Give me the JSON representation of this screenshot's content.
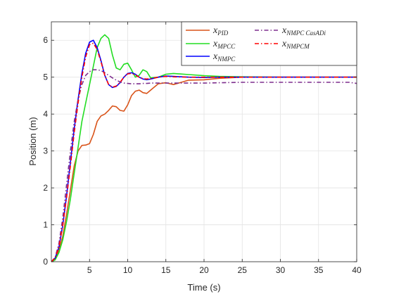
{
  "chart_data": {
    "type": "line",
    "title": "",
    "xlabel": "Time (s)",
    "ylabel": "Position (m)",
    "xlim": [
      0,
      40
    ],
    "ylim": [
      0,
      6.5
    ],
    "xticks": [
      "5",
      "10",
      "15",
      "20",
      "25",
      "30",
      "35",
      "40"
    ],
    "yticks": [
      "0",
      "1",
      "2",
      "3",
      "4",
      "5",
      "6"
    ],
    "grid": true,
    "legend_position": "top-right",
    "series": [
      {
        "name": "x_PID",
        "legend_main": "x",
        "legend_sub": "PID",
        "color": "#D95319",
        "dash": "solid",
        "x": [
          0,
          0.5,
          1,
          1.5,
          2,
          2.5,
          3,
          3.5,
          4,
          4.5,
          5,
          5.5,
          6,
          6.5,
          7,
          7.5,
          8,
          8.5,
          9,
          9.5,
          10,
          10.5,
          11,
          11.5,
          12,
          12.5,
          13,
          14,
          15,
          16,
          18,
          20,
          22,
          25,
          30,
          35,
          40
        ],
        "y": [
          0,
          0.08,
          0.3,
          0.7,
          1.3,
          1.95,
          2.6,
          3.0,
          3.15,
          3.16,
          3.2,
          3.45,
          3.8,
          3.95,
          4.0,
          4.1,
          4.22,
          4.2,
          4.1,
          4.08,
          4.25,
          4.5,
          4.62,
          4.65,
          4.58,
          4.56,
          4.65,
          4.82,
          4.85,
          4.8,
          4.92,
          4.93,
          4.97,
          5.0,
          5.0,
          5.0,
          5.0
        ]
      },
      {
        "name": "x_MPCC",
        "legend_main": "x",
        "legend_sub": "MPCC",
        "color": "#22DD22",
        "dash": "solid",
        "x": [
          0,
          0.5,
          1,
          1.5,
          2,
          2.5,
          3,
          3.5,
          4,
          4.5,
          5,
          5.5,
          6,
          6.5,
          7,
          7.5,
          8,
          8.5,
          9,
          9.5,
          10,
          10.5,
          11,
          11.5,
          12,
          12.5,
          13,
          14,
          15,
          16,
          18,
          20,
          22,
          25,
          30,
          35,
          40
        ],
        "y": [
          0,
          0.05,
          0.25,
          0.6,
          1.1,
          1.7,
          2.4,
          3.1,
          3.8,
          4.3,
          4.8,
          5.3,
          5.8,
          6.05,
          6.15,
          6.05,
          5.6,
          5.25,
          5.2,
          5.35,
          5.38,
          5.2,
          5.0,
          5.05,
          5.2,
          5.15,
          4.98,
          5.0,
          5.08,
          5.1,
          5.07,
          5.04,
          5.02,
          5.01,
          5.0,
          5.0,
          5.0
        ]
      },
      {
        "name": "x_NMPC",
        "legend_main": "x",
        "legend_sub": "NMPC",
        "color": "#0000FF",
        "dash": "solid",
        "x": [
          0,
          0.5,
          1,
          1.5,
          2,
          2.5,
          3,
          3.5,
          4,
          4.5,
          5,
          5.5,
          6,
          6.5,
          7,
          7.5,
          8,
          8.5,
          9,
          9.5,
          10,
          10.5,
          11,
          11.5,
          12,
          12.5,
          13,
          14,
          15,
          16,
          18,
          20,
          22,
          25,
          30,
          35,
          40
        ],
        "y": [
          0,
          0.1,
          0.4,
          1.0,
          1.8,
          2.7,
          3.6,
          4.4,
          5.1,
          5.65,
          5.95,
          6.0,
          5.8,
          5.45,
          5.05,
          4.8,
          4.72,
          4.75,
          4.85,
          5.0,
          5.1,
          5.12,
          5.08,
          5.0,
          4.95,
          4.93,
          4.95,
          5.0,
          5.03,
          5.02,
          5.0,
          4.99,
          5.0,
          5.0,
          5.0,
          5.0,
          5.0
        ]
      },
      {
        "name": "x_NMPC CasADi",
        "legend_main": "x",
        "legend_sub": "NMPC CasADi",
        "color": "#7E2F8E",
        "dash": "dashdot",
        "x": [
          0,
          0.5,
          1,
          1.5,
          2,
          2.5,
          3,
          3.5,
          4,
          4.5,
          5,
          5.5,
          6,
          6.5,
          7,
          7.5,
          8,
          8.5,
          9,
          9.5,
          10,
          10.5,
          11,
          11.5,
          12,
          12.5,
          13,
          14,
          15,
          16,
          18,
          20,
          22,
          25,
          30,
          35,
          39,
          40
        ],
        "y": [
          0,
          0.12,
          0.5,
          1.2,
          2.1,
          3.0,
          3.8,
          4.4,
          4.8,
          5.05,
          5.15,
          5.2,
          5.2,
          5.18,
          5.12,
          5.05,
          4.98,
          4.92,
          4.87,
          4.84,
          4.83,
          4.82,
          4.82,
          4.82,
          4.83,
          4.83,
          4.84,
          4.84,
          4.84,
          4.84,
          4.84,
          4.84,
          4.85,
          4.86,
          4.86,
          4.86,
          4.86,
          4.83
        ]
      },
      {
        "name": "x_NMPCM",
        "legend_main": "x",
        "legend_sub": "NMPCM",
        "color": "#FF0000",
        "dash": "dashdot",
        "x": [
          0,
          0.5,
          1,
          1.5,
          2,
          2.5,
          3,
          3.5,
          4,
          4.5,
          5,
          5.5,
          6,
          6.5,
          7,
          7.5,
          8,
          8.5,
          9,
          9.5,
          10,
          10.5,
          11,
          11.5,
          12,
          12.5,
          13,
          14,
          15,
          16,
          18,
          20,
          22,
          25,
          30,
          35,
          40
        ],
        "y": [
          0,
          0.1,
          0.4,
          1.0,
          1.75,
          2.6,
          3.5,
          4.3,
          5.0,
          5.55,
          5.88,
          5.92,
          5.75,
          5.42,
          5.05,
          4.8,
          4.73,
          4.76,
          4.86,
          5.0,
          5.09,
          5.1,
          5.06,
          5.0,
          4.96,
          4.95,
          4.96,
          5.0,
          5.02,
          5.01,
          5.0,
          5.0,
          5.0,
          5.0,
          5.0,
          5.0,
          5.0
        ]
      }
    ]
  }
}
